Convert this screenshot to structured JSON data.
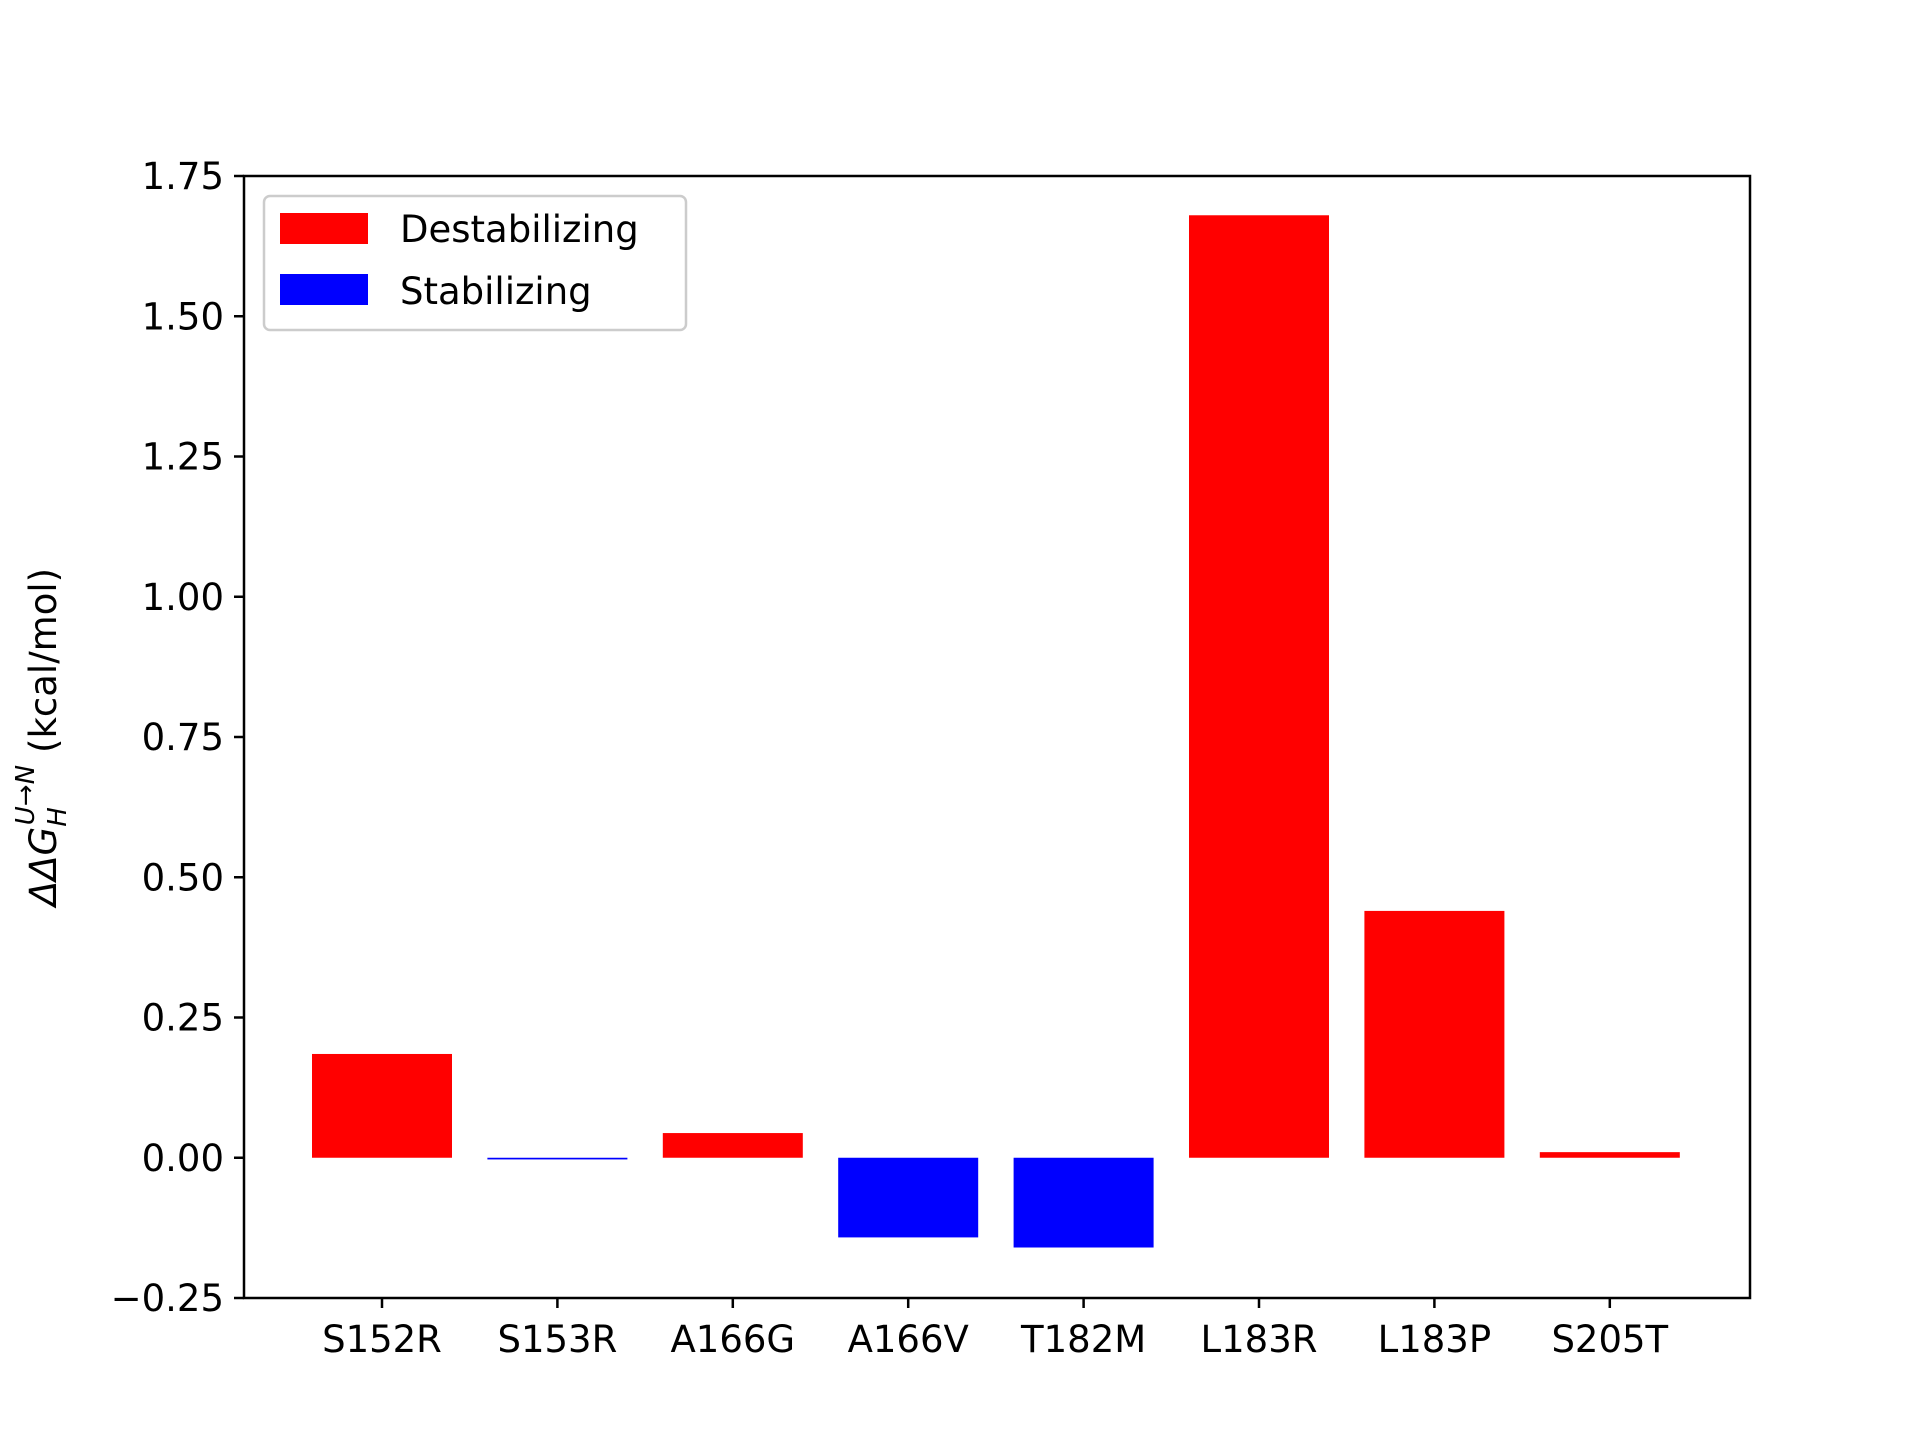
{
  "chart_data": {
    "type": "bar",
    "categories": [
      "S152R",
      "S153R",
      "A166G",
      "A166V",
      "T182M",
      "L183R",
      "L183P",
      "S205T"
    ],
    "values": [
      0.185,
      -0.003,
      0.044,
      -0.142,
      -0.16,
      1.68,
      0.44,
      0.01
    ],
    "ylim": [
      -0.25,
      1.75
    ],
    "yticks": [
      -0.25,
      0.0,
      0.25,
      0.5,
      0.75,
      1.0,
      1.25,
      1.5,
      1.75
    ],
    "ytick_labels": [
      "−0.25",
      "0.00",
      "0.25",
      "0.50",
      "0.75",
      "1.00",
      "1.25",
      "1.50",
      "1.75"
    ],
    "ylabel": {
      "main": "ΔΔG",
      "subscript": "H",
      "superscript": "U→N",
      "units": "(kcal/mol)"
    },
    "xlabel": "",
    "title": "",
    "grid": false,
    "legend": {
      "position": "upper-left",
      "entries": [
        {
          "label": "Destabilizing",
          "color": "#ff0000"
        },
        {
          "label": "Stabilizing",
          "color": "#0000ff"
        }
      ]
    },
    "colors": {
      "positive": "#ff0000",
      "negative": "#0000ff"
    }
  }
}
